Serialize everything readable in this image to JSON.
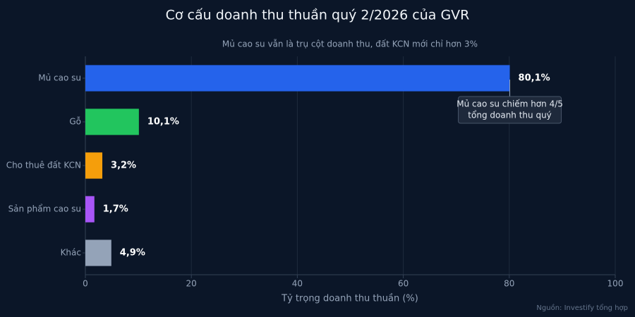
{
  "chart_data": {
    "type": "bar",
    "orientation": "horizontal",
    "title": "Cơ cấu doanh thu thuần quý 2/2026 của GVR",
    "subtitle": "Mủ cao su vẫn là trụ cột doanh thu, đất KCN mới chỉ hơn 3%",
    "x_label": "Tỷ trọng doanh thu thuần (%)",
    "categories": [
      "Mủ cao su",
      "Gỗ",
      "Cho thuê đất KCN",
      "Sản phẩm cao su",
      "Khác"
    ],
    "values": [
      80.1,
      10.1,
      3.2,
      1.7,
      4.9
    ],
    "value_labels": [
      "80,1%",
      "10,1%",
      "3,2%",
      "1,7%",
      "4,9%"
    ],
    "colors": [
      "#2563eb",
      "#22c55e",
      "#f59e0b",
      "#a855f7",
      "#94a3b8"
    ],
    "xlim": [
      0,
      100
    ],
    "xticks": [
      0,
      20,
      40,
      60,
      80,
      100
    ],
    "grid": true,
    "annotation": [
      "Mủ cao su chiếm hơn 4/5",
      "tổng doanh thu quý"
    ],
    "source": "Nguồn: Investify tổng hợp"
  }
}
